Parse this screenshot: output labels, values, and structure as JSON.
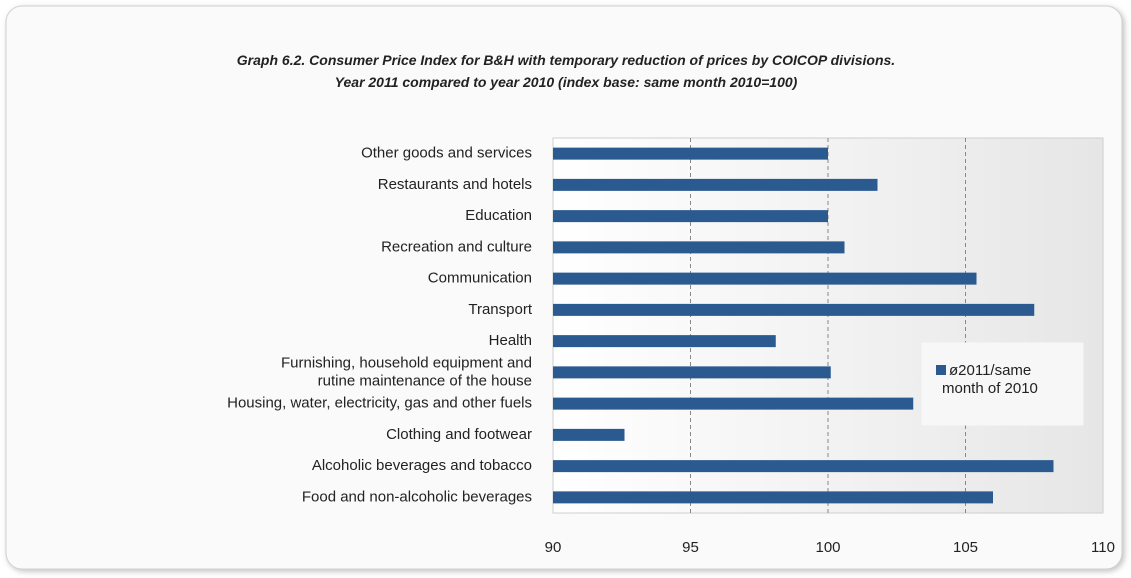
{
  "chart_data": {
    "type": "bar",
    "orientation": "horizontal",
    "title": "Graph 6.2. Consumer Price Index for B&H with temporary reduction of prices by COICOP divisions.\nYear 2011 compared to year 2010 (index base: same month 2010=100)",
    "categories": [
      "Other goods and services",
      "Restaurants and hotels",
      "Education",
      "Recreation and culture",
      "Communication",
      "Transport",
      "Health",
      "Furnishing, household equipment and\nrutine maintenance of the house",
      "Housing, water, electricity, gas and other fuels",
      "Clothing and footwear",
      "Alcoholic beverages and tobacco",
      "Food and non-alcoholic beverages"
    ],
    "series": [
      {
        "name": "ø2011/same\nmonth of 2010",
        "color": "#2a5a8f",
        "values": [
          100.0,
          101.8,
          100.0,
          100.6,
          105.4,
          107.5,
          98.1,
          100.1,
          103.1,
          92.6,
          108.2,
          106.0
        ]
      }
    ],
    "xlim": [
      90,
      110
    ],
    "xticks": [
      90,
      95,
      100,
      105,
      110
    ],
    "grid": true,
    "legend": "right"
  }
}
